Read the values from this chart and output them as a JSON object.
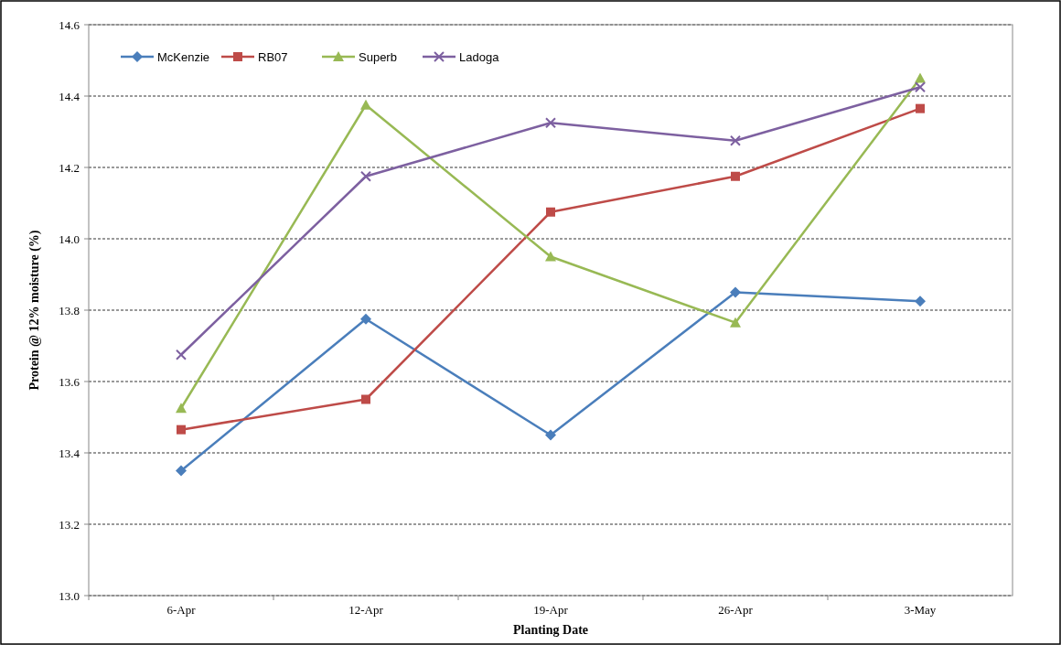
{
  "chart_data": {
    "type": "line",
    "xlabel": "Planting Date",
    "ylabel": "Protein @ 12% moisture (%)",
    "categories": [
      "6-Apr",
      "12-Apr",
      "19-Apr",
      "26-Apr",
      "3-May"
    ],
    "series": [
      {
        "name": "McKenzie",
        "color": "#4a7ebb",
        "marker": "diamond",
        "values": [
          13.35,
          13.775,
          13.45,
          13.85,
          13.825
        ]
      },
      {
        "name": "RB07",
        "color": "#be4b48",
        "marker": "square",
        "values": [
          13.465,
          13.55,
          14.075,
          14.175,
          14.365
        ]
      },
      {
        "name": "Superb",
        "color": "#98b954",
        "marker": "triangle",
        "values": [
          13.525,
          14.375,
          13.95,
          13.765,
          14.45
        ]
      },
      {
        "name": "Ladoga",
        "color": "#7d60a0",
        "marker": "cross",
        "values": [
          13.675,
          14.175,
          14.325,
          14.275,
          14.425
        ]
      }
    ],
    "ylim": [
      13.0,
      14.6
    ],
    "yticks": [
      {
        "value": 13.0,
        "label": "13.0"
      },
      {
        "value": 13.2,
        "label": "13.2"
      },
      {
        "value": 13.4,
        "label": "13.4"
      },
      {
        "value": 13.6,
        "label": "13.6"
      },
      {
        "value": 13.8,
        "label": "13.8"
      },
      {
        "value": 14.0,
        "label": "14.0"
      },
      {
        "value": 14.2,
        "label": "14.2"
      },
      {
        "value": 14.4,
        "label": "14.4"
      },
      {
        "value": 14.6,
        "label": "14.6"
      }
    ],
    "grid": "y",
    "legend": "top left",
    "line_style": "solid"
  }
}
